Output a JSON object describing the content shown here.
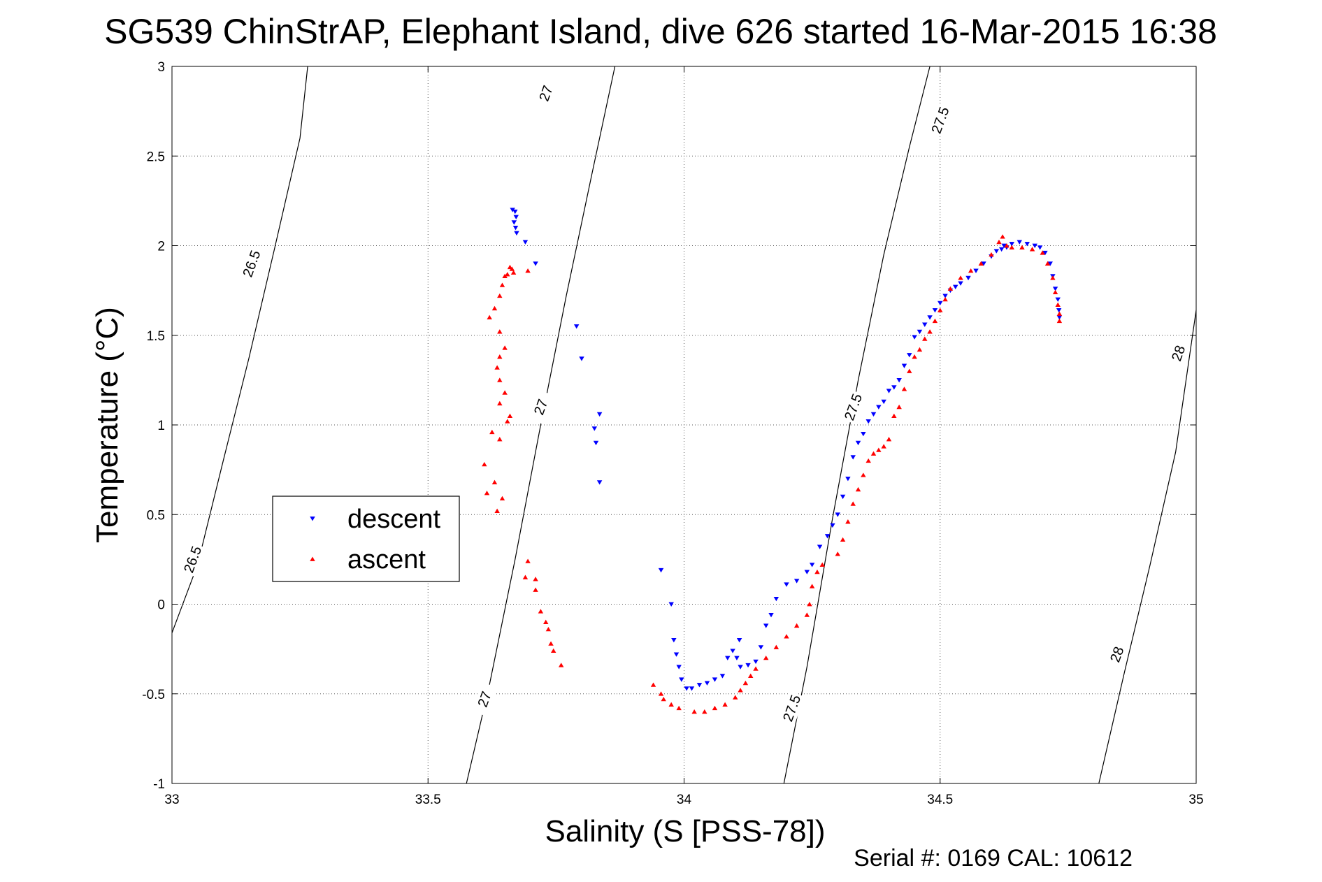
{
  "chart_data": {
    "type": "scatter",
    "title": "SG539 ChinStrAP, Elephant Island, dive 626 started 16-Mar-2015 16:38",
    "xlabel": "Salinity (S [PSS-78])",
    "ylabel": "Temperature (°C)",
    "xlim": [
      33,
      35
    ],
    "ylim": [
      -1,
      3
    ],
    "x_ticks": [
      33,
      33.5,
      34,
      34.5,
      35
    ],
    "x_tick_labels": [
      "33",
      "33.5",
      "34",
      "34.5",
      "35"
    ],
    "y_ticks": [
      -1,
      -0.5,
      0,
      0.5,
      1,
      1.5,
      2,
      2.5,
      3
    ],
    "y_tick_labels": [
      "-1",
      "-0.5",
      "0",
      "0.5",
      "1",
      "1.5",
      "2",
      "2.5",
      "3"
    ],
    "grid": true,
    "legend_position": "middle-left",
    "footer": "Serial #: 0169 CAL: 10612",
    "density_contours": [
      {
        "level": "26.5",
        "points": [
          [
            33.0,
            -0.16
          ],
          [
            33.05,
            0.22
          ],
          [
            33.1,
            0.8
          ],
          [
            33.15,
            1.37
          ],
          [
            33.2,
            1.98
          ],
          [
            33.25,
            2.6
          ],
          [
            33.265,
            3.0
          ]
        ]
      },
      {
        "level": "27",
        "points": [
          [
            33.575,
            -1.0
          ],
          [
            33.62,
            -0.45
          ],
          [
            33.67,
            0.25
          ],
          [
            33.72,
            1.0
          ],
          [
            33.77,
            1.72
          ],
          [
            33.82,
            2.4
          ],
          [
            33.865,
            3.0
          ]
        ]
      },
      {
        "level": "27.5",
        "points": [
          [
            34.195,
            -1.0
          ],
          [
            34.24,
            -0.35
          ],
          [
            34.29,
            0.48
          ],
          [
            34.34,
            1.25
          ],
          [
            34.39,
            1.95
          ],
          [
            34.44,
            2.55
          ],
          [
            34.48,
            3.0
          ]
        ]
      },
      {
        "level": "28",
        "points": [
          [
            34.81,
            -1.0
          ],
          [
            34.86,
            -0.38
          ],
          [
            34.91,
            0.22
          ],
          [
            34.96,
            0.85
          ],
          [
            35.0,
            1.64
          ]
        ]
      }
    ],
    "contour_labels": [
      {
        "text": "26.5",
        "x": 33.155,
        "y": 1.9
      },
      {
        "text": "26.5",
        "x": 33.04,
        "y": 0.25
      },
      {
        "text": "27",
        "x": 33.73,
        "y": 2.85
      },
      {
        "text": "27",
        "x": 33.72,
        "y": 1.1
      },
      {
        "text": "27",
        "x": 33.61,
        "y": -0.53
      },
      {
        "text": "27.5",
        "x": 34.5,
        "y": 2.7
      },
      {
        "text": "27.5",
        "x": 34.33,
        "y": 1.1
      },
      {
        "text": "27.5",
        "x": 34.21,
        "y": -0.58
      },
      {
        "text": "28",
        "x": 34.965,
        "y": 1.4
      },
      {
        "text": "28",
        "x": 34.845,
        "y": -0.28
      }
    ],
    "series": [
      {
        "name": "descent",
        "color": "#0000ff",
        "marker": "triangle-down",
        "points": [
          [
            33.665,
            2.2
          ],
          [
            33.67,
            2.19
          ],
          [
            33.672,
            2.16
          ],
          [
            33.668,
            2.13
          ],
          [
            33.671,
            2.1
          ],
          [
            33.673,
            2.07
          ],
          [
            33.69,
            2.02
          ],
          [
            33.71,
            1.9
          ],
          [
            33.79,
            1.55
          ],
          [
            33.8,
            1.37
          ],
          [
            33.835,
            1.06
          ],
          [
            33.825,
            0.98
          ],
          [
            33.828,
            0.9
          ],
          [
            33.835,
            0.68
          ],
          [
            33.955,
            0.19
          ],
          [
            33.975,
            0.0
          ],
          [
            33.98,
            -0.2
          ],
          [
            33.985,
            -0.28
          ],
          [
            33.99,
            -0.35
          ],
          [
            33.995,
            -0.42
          ],
          [
            34.005,
            -0.47
          ],
          [
            34.015,
            -0.47
          ],
          [
            34.03,
            -0.45
          ],
          [
            34.045,
            -0.44
          ],
          [
            34.06,
            -0.42
          ],
          [
            34.075,
            -0.4
          ],
          [
            34.085,
            -0.3
          ],
          [
            34.095,
            -0.26
          ],
          [
            34.108,
            -0.2
          ],
          [
            34.103,
            -0.3
          ],
          [
            34.11,
            -0.35
          ],
          [
            34.125,
            -0.34
          ],
          [
            34.14,
            -0.32
          ],
          [
            34.15,
            -0.24
          ],
          [
            34.16,
            -0.12
          ],
          [
            34.17,
            -0.06
          ],
          [
            34.18,
            0.03
          ],
          [
            34.2,
            0.11
          ],
          [
            34.22,
            0.13
          ],
          [
            34.24,
            0.18
          ],
          [
            34.25,
            0.22
          ],
          [
            34.265,
            0.32
          ],
          [
            34.28,
            0.38
          ],
          [
            34.29,
            0.44
          ],
          [
            34.3,
            0.5
          ],
          [
            34.31,
            0.6
          ],
          [
            34.32,
            0.7
          ],
          [
            34.33,
            0.82
          ],
          [
            34.34,
            0.9
          ],
          [
            34.35,
            0.95
          ],
          [
            34.36,
            1.02
          ],
          [
            34.37,
            1.06
          ],
          [
            34.38,
            1.1
          ],
          [
            34.39,
            1.13
          ],
          [
            34.4,
            1.19
          ],
          [
            34.41,
            1.21
          ],
          [
            34.42,
            1.25
          ],
          [
            34.43,
            1.33
          ],
          [
            34.44,
            1.39
          ],
          [
            34.45,
            1.49
          ],
          [
            34.46,
            1.52
          ],
          [
            34.47,
            1.56
          ],
          [
            34.48,
            1.6
          ],
          [
            34.49,
            1.64
          ],
          [
            34.5,
            1.68
          ],
          [
            34.51,
            1.72
          ],
          [
            34.52,
            1.75
          ],
          [
            34.53,
            1.77
          ],
          [
            34.54,
            1.79
          ],
          [
            34.555,
            1.82
          ],
          [
            34.57,
            1.86
          ],
          [
            34.585,
            1.9
          ],
          [
            34.6,
            1.94
          ],
          [
            34.61,
            1.97
          ],
          [
            34.62,
            1.98
          ],
          [
            34.625,
            2.0
          ],
          [
            34.63,
            1.99
          ],
          [
            34.64,
            2.01
          ],
          [
            34.655,
            2.02
          ],
          [
            34.67,
            2.01
          ],
          [
            34.685,
            2.0
          ],
          [
            34.695,
            1.99
          ],
          [
            34.705,
            1.96
          ],
          [
            34.715,
            1.9
          ],
          [
            34.72,
            1.83
          ],
          [
            34.725,
            1.76
          ],
          [
            34.73,
            1.7
          ],
          [
            34.732,
            1.64
          ],
          [
            34.733,
            1.6
          ]
        ]
      },
      {
        "name": "ascent",
        "color": "#ff0000",
        "marker": "triangle-up",
        "points": [
          [
            33.66,
            1.88
          ],
          [
            33.664,
            1.87
          ],
          [
            33.667,
            1.85
          ],
          [
            33.655,
            1.84
          ],
          [
            33.65,
            1.83
          ],
          [
            33.695,
            1.86
          ],
          [
            33.645,
            1.78
          ],
          [
            33.64,
            1.72
          ],
          [
            33.63,
            1.65
          ],
          [
            33.62,
            1.6
          ],
          [
            33.64,
            1.52
          ],
          [
            33.65,
            1.43
          ],
          [
            33.64,
            1.38
          ],
          [
            33.635,
            1.32
          ],
          [
            33.64,
            1.25
          ],
          [
            33.65,
            1.18
          ],
          [
            33.64,
            1.12
          ],
          [
            33.655,
            1.02
          ],
          [
            33.66,
            1.05
          ],
          [
            33.625,
            0.96
          ],
          [
            33.64,
            0.92
          ],
          [
            33.61,
            0.78
          ],
          [
            33.63,
            0.68
          ],
          [
            33.615,
            0.62
          ],
          [
            33.635,
            0.52
          ],
          [
            33.645,
            0.59
          ],
          [
            33.695,
            0.24
          ],
          [
            33.69,
            0.15
          ],
          [
            33.71,
            0.14
          ],
          [
            33.71,
            0.08
          ],
          [
            33.72,
            -0.04
          ],
          [
            33.73,
            -0.1
          ],
          [
            33.735,
            -0.14
          ],
          [
            33.74,
            -0.22
          ],
          [
            33.745,
            -0.26
          ],
          [
            33.76,
            -0.34
          ],
          [
            33.94,
            -0.45
          ],
          [
            33.955,
            -0.5
          ],
          [
            33.96,
            -0.53
          ],
          [
            33.975,
            -0.56
          ],
          [
            33.99,
            -0.58
          ],
          [
            34.02,
            -0.6
          ],
          [
            34.04,
            -0.6
          ],
          [
            34.06,
            -0.58
          ],
          [
            34.08,
            -0.56
          ],
          [
            34.1,
            -0.52
          ],
          [
            34.11,
            -0.48
          ],
          [
            34.12,
            -0.44
          ],
          [
            34.13,
            -0.4
          ],
          [
            34.14,
            -0.36
          ],
          [
            34.16,
            -0.3
          ],
          [
            34.18,
            -0.24
          ],
          [
            34.2,
            -0.18
          ],
          [
            34.22,
            -0.12
          ],
          [
            34.24,
            -0.06
          ],
          [
            34.245,
            0.0
          ],
          [
            34.25,
            0.1
          ],
          [
            34.26,
            0.18
          ],
          [
            34.27,
            0.22
          ],
          [
            34.3,
            0.28
          ],
          [
            34.31,
            0.36
          ],
          [
            34.32,
            0.46
          ],
          [
            34.33,
            0.56
          ],
          [
            34.34,
            0.64
          ],
          [
            34.35,
            0.72
          ],
          [
            34.36,
            0.8
          ],
          [
            34.37,
            0.84
          ],
          [
            34.38,
            0.86
          ],
          [
            34.39,
            0.88
          ],
          [
            34.4,
            0.92
          ],
          [
            34.41,
            1.05
          ],
          [
            34.42,
            1.1
          ],
          [
            34.43,
            1.2
          ],
          [
            34.44,
            1.3
          ],
          [
            34.45,
            1.38
          ],
          [
            34.46,
            1.42
          ],
          [
            34.47,
            1.48
          ],
          [
            34.48,
            1.52
          ],
          [
            34.49,
            1.58
          ],
          [
            34.5,
            1.64
          ],
          [
            34.51,
            1.7
          ],
          [
            34.52,
            1.76
          ],
          [
            34.54,
            1.82
          ],
          [
            34.56,
            1.86
          ],
          [
            34.58,
            1.9
          ],
          [
            34.6,
            1.95
          ],
          [
            34.615,
            2.02
          ],
          [
            34.622,
            2.05
          ],
          [
            34.63,
            2.0
          ],
          [
            34.64,
            1.99
          ],
          [
            34.66,
            1.99
          ],
          [
            34.68,
            1.98
          ],
          [
            34.7,
            1.96
          ],
          [
            34.71,
            1.9
          ],
          [
            34.72,
            1.82
          ],
          [
            34.725,
            1.74
          ],
          [
            34.73,
            1.67
          ],
          [
            34.733,
            1.62
          ],
          [
            34.733,
            1.58
          ]
        ]
      }
    ]
  }
}
